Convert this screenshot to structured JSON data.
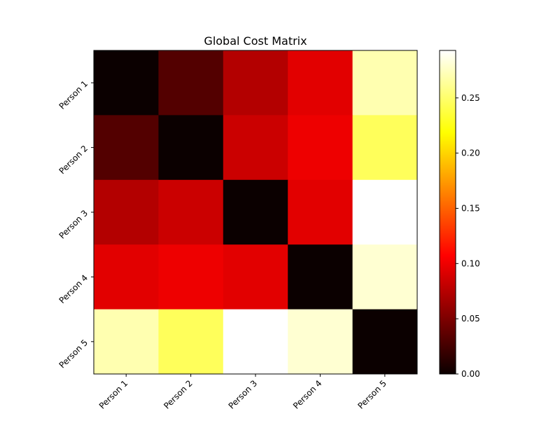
{
  "chart_data": {
    "type": "heatmap",
    "title": "Global Cost Matrix",
    "xlabel": "",
    "ylabel": "",
    "x_categories": [
      "Person 1",
      "Person 2",
      "Person 3",
      "Person 4",
      "Person 5"
    ],
    "y_categories": [
      "Person 1",
      "Person 2",
      "Person 3",
      "Person 4",
      "Person 5"
    ],
    "values": [
      [
        0.0,
        0.035,
        0.075,
        0.095,
        0.27
      ],
      [
        0.035,
        0.0,
        0.085,
        0.1,
        0.245
      ],
      [
        0.075,
        0.085,
        0.0,
        0.095,
        0.293
      ],
      [
        0.095,
        0.1,
        0.095,
        0.0,
        0.28
      ],
      [
        0.27,
        0.245,
        0.293,
        0.28,
        0.0
      ]
    ],
    "colormap": "hot",
    "vmin": 0.0,
    "vmax": 0.293,
    "colorbar": {
      "ticks": [
        0.0,
        0.05,
        0.1,
        0.15,
        0.2,
        0.25
      ],
      "tick_labels": [
        "0.00",
        "0.05",
        "0.10",
        "0.15",
        "0.20",
        "0.25"
      ]
    },
    "grid": false,
    "legend": "none"
  }
}
